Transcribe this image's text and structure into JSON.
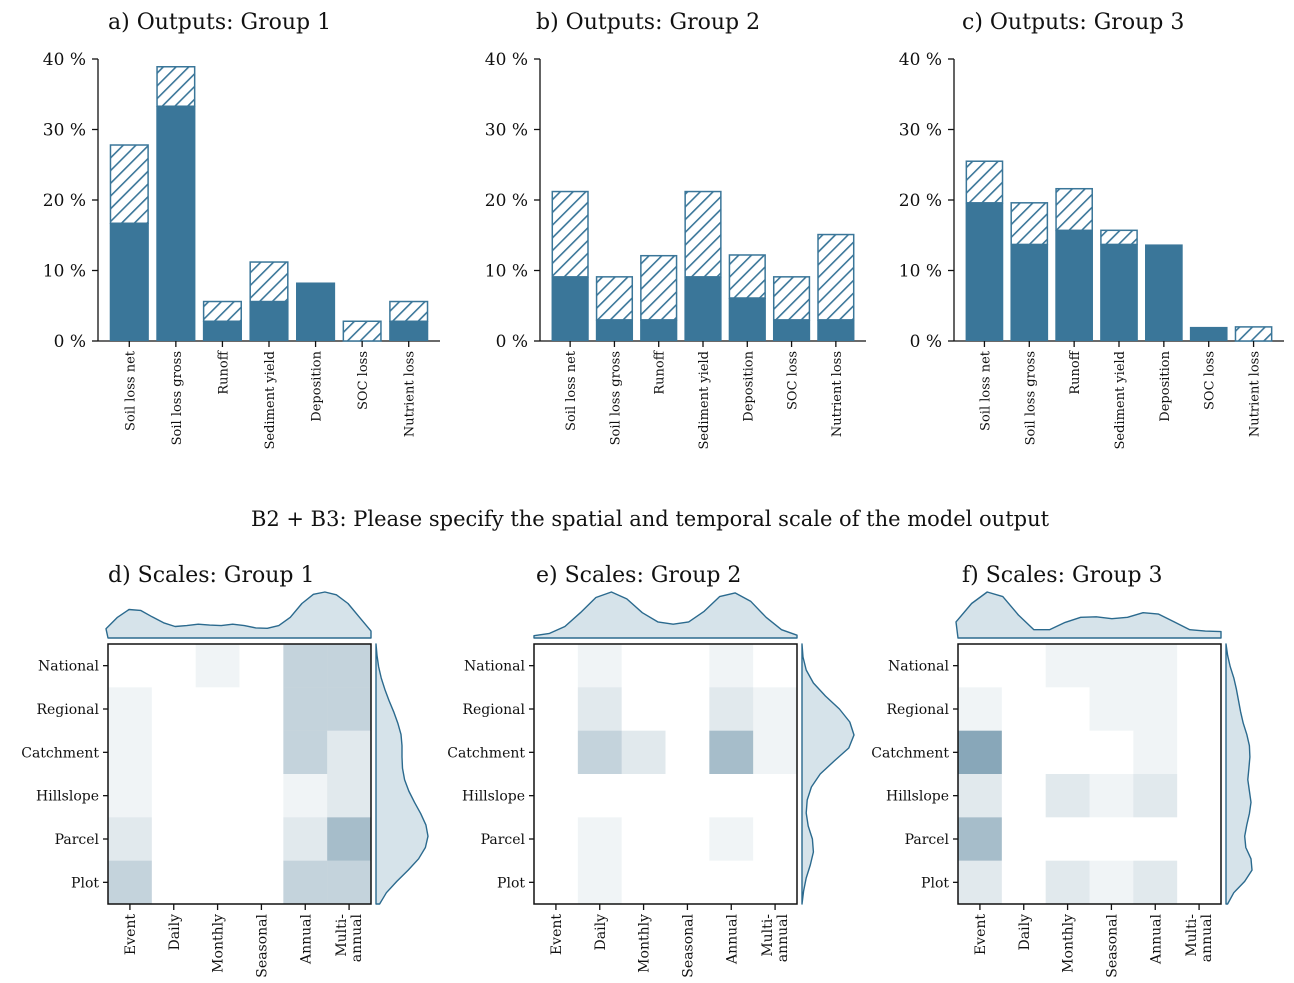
{
  "colors": {
    "bar": "#3a7699",
    "hatch": "#3a7699",
    "heat": "#3d6f8c",
    "density_fill": "#d6e3ea",
    "density_line": "#2b6a8e"
  },
  "suptitle": "B2 + B3: Please specify the spatial and temporal scale of the model output",
  "chart_data": [
    {
      "type": "bar",
      "title": "a) Outputs: Group 1",
      "categories": [
        "Soil loss net",
        "Soil loss gross",
        "Runoff",
        "Sediment yield",
        "Deposition",
        "SOC loss",
        "Nutrient loss"
      ],
      "ytick_labels": [
        "0 %",
        "10 %",
        "20 %",
        "30 %",
        "40 %"
      ],
      "ylim": [
        0,
        40
      ],
      "series": [
        {
          "values": [
            16.7,
            33.3,
            2.8,
            5.6,
            8.3,
            0,
            2.8
          ]
        },
        {
          "values": [
            11.1,
            5.6,
            2.8,
            5.6,
            0,
            2.8,
            2.8
          ],
          "style": "hatched"
        }
      ]
    },
    {
      "type": "bar",
      "title": "b) Outputs: Group 2",
      "categories": [
        "Soil loss net",
        "Soil loss gross",
        "Runoff",
        "Sediment yield",
        "Deposition",
        "SOC loss",
        "Nutrient loss"
      ],
      "ytick_labels": [
        "0 %",
        "10 %",
        "20 %",
        "30 %",
        "40 %"
      ],
      "ylim": [
        0,
        40
      ],
      "series": [
        {
          "values": [
            9.1,
            3.0,
            3.0,
            9.1,
            6.1,
            3.0,
            3.0
          ]
        },
        {
          "values": [
            12.1,
            6.1,
            9.1,
            12.1,
            6.1,
            6.1,
            12.1
          ],
          "style": "hatched"
        }
      ]
    },
    {
      "type": "bar",
      "title": "c) Outputs: Group 3",
      "categories": [
        "Soil loss net",
        "Soil loss gross",
        "Runoff",
        "Sediment yield",
        "Deposition",
        "SOC loss",
        "Nutrient loss"
      ],
      "ytick_labels": [
        "0 %",
        "10 %",
        "20 %",
        "30 %",
        "40 %"
      ],
      "ylim": [
        0,
        40
      ],
      "series": [
        {
          "values": [
            19.6,
            13.7,
            15.7,
            13.7,
            13.7,
            2.0,
            0
          ]
        },
        {
          "values": [
            5.9,
            5.9,
            5.9,
            2.0,
            0,
            0,
            2.0
          ],
          "style": "hatched"
        }
      ]
    },
    {
      "type": "heatmap",
      "title": "d) Scales: Group 1",
      "x": [
        "Event",
        "Daily",
        "Monthly",
        "Seasonal",
        "Annual",
        "Multi-\nannual"
      ],
      "y": [
        "National",
        "Regional",
        "Catchment",
        "Hillslope",
        "Parcel",
        "Plot"
      ],
      "values": [
        [
          0,
          0,
          1,
          0,
          4,
          4
        ],
        [
          1,
          0,
          0,
          0,
          4,
          4
        ],
        [
          1,
          0,
          0,
          0,
          4,
          2
        ],
        [
          1,
          0,
          0,
          0,
          1,
          2
        ],
        [
          2,
          0,
          0,
          0,
          2,
          6
        ],
        [
          4,
          0,
          0,
          0,
          4,
          4
        ]
      ],
      "vmax": 12,
      "top_density": [
        0.2,
        0.45,
        0.62,
        0.6,
        0.46,
        0.33,
        0.25,
        0.27,
        0.3,
        0.28,
        0.27,
        0.3,
        0.27,
        0.22,
        0.21,
        0.27,
        0.45,
        0.75,
        0.95,
        1.0,
        0.94,
        0.75,
        0.45,
        0.15
      ],
      "side_density": [
        0.0,
        0.02,
        0.05,
        0.1,
        0.17,
        0.25,
        0.34,
        0.42,
        0.48,
        0.5,
        0.5,
        0.51,
        0.55,
        0.63,
        0.74,
        0.86,
        0.96,
        1.0,
        0.95,
        0.82,
        0.62,
        0.4,
        0.2,
        0.07
      ]
    },
    {
      "type": "heatmap",
      "title": "e) Scales: Group 2",
      "x": [
        "Event",
        "Daily",
        "Monthly",
        "Seasonal",
        "Annual",
        "Multi-\nannual"
      ],
      "y": [
        "National",
        "Regional",
        "Catchment",
        "Hillslope",
        "Parcel",
        "Plot"
      ],
      "values": [
        [
          0,
          1,
          0,
          0,
          1,
          0
        ],
        [
          0,
          2,
          0,
          0,
          2,
          1
        ],
        [
          0,
          4,
          2,
          0,
          6,
          1
        ],
        [
          0,
          0,
          0,
          0,
          0,
          0
        ],
        [
          0,
          1,
          0,
          0,
          1,
          0
        ],
        [
          0,
          1,
          0,
          0,
          0,
          0
        ]
      ],
      "vmax": 12,
      "top_density": [
        0.05,
        0.1,
        0.25,
        0.55,
        0.88,
        1.0,
        0.85,
        0.55,
        0.35,
        0.3,
        0.35,
        0.58,
        0.9,
        0.98,
        0.8,
        0.45,
        0.18,
        0.06
      ],
      "side_density": [
        0.0,
        0.02,
        0.08,
        0.22,
        0.45,
        0.72,
        0.92,
        1.0,
        0.9,
        0.62,
        0.35,
        0.18,
        0.1,
        0.08,
        0.12,
        0.2,
        0.22,
        0.16,
        0.08,
        0.03,
        0.0
      ]
    },
    {
      "type": "heatmap",
      "title": "f) Scales: Group 3",
      "x": [
        "Event",
        "Daily",
        "Monthly",
        "Seasonal",
        "Annual",
        "Multi-\nannual"
      ],
      "y": [
        "National",
        "Regional",
        "Catchment",
        "Hillslope",
        "Parcel",
        "Plot"
      ],
      "values": [
        [
          0,
          0,
          1,
          1,
          1,
          0
        ],
        [
          1,
          0,
          0,
          1,
          1,
          0
        ],
        [
          8,
          0,
          0,
          0,
          1,
          0
        ],
        [
          2,
          0,
          2,
          1,
          2,
          0
        ],
        [
          6,
          0,
          0,
          0,
          0,
          0
        ],
        [
          2,
          0,
          2,
          1,
          2,
          0
        ]
      ],
      "vmax": 12,
      "top_density": [
        0.35,
        0.75,
        1.0,
        0.9,
        0.5,
        0.18,
        0.18,
        0.34,
        0.45,
        0.46,
        0.42,
        0.45,
        0.55,
        0.52,
        0.35,
        0.18,
        0.15,
        0.14
      ],
      "side_density": [
        0.0,
        0.03,
        0.08,
        0.15,
        0.2,
        0.24,
        0.28,
        0.33,
        0.4,
        0.45,
        0.46,
        0.44,
        0.42,
        0.45,
        0.48,
        0.45,
        0.4,
        0.36,
        0.38,
        0.48,
        0.5,
        0.36,
        0.15,
        0.03
      ]
    }
  ]
}
